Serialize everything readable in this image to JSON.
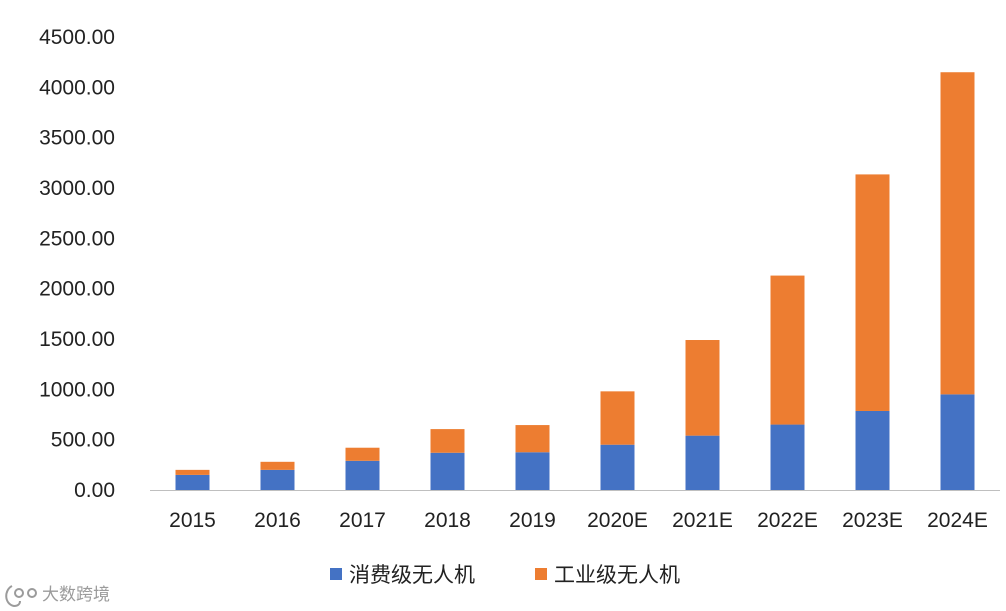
{
  "chart_data": {
    "type": "bar",
    "stacked": true,
    "categories": [
      "2015",
      "2016",
      "2017",
      "2018",
      "2019",
      "2020E",
      "2021E",
      "2022E",
      "2023E",
      "2024E"
    ],
    "series": [
      {
        "name": "消费级无人机",
        "color": "#4472C4",
        "values": [
          150,
          200,
          290,
          370,
          375,
          450,
          540,
          650,
          785,
          950
        ]
      },
      {
        "name": "工业级无人机",
        "color": "#ED7D31",
        "values": [
          50,
          80,
          130,
          235,
          270,
          530,
          950,
          1480,
          2350,
          3200
        ]
      }
    ],
    "ylim": [
      0,
      4500
    ],
    "yticks": [
      "0.00",
      "500.00",
      "1000.00",
      "1500.00",
      "2000.00",
      "2500.00",
      "3000.00",
      "3500.00",
      "4000.00",
      "4500.00"
    ],
    "grid": false,
    "legend_position": "bottom",
    "title": "",
    "xlabel": "",
    "ylabel": ""
  },
  "watermark": {
    "text": "大数跨境"
  }
}
